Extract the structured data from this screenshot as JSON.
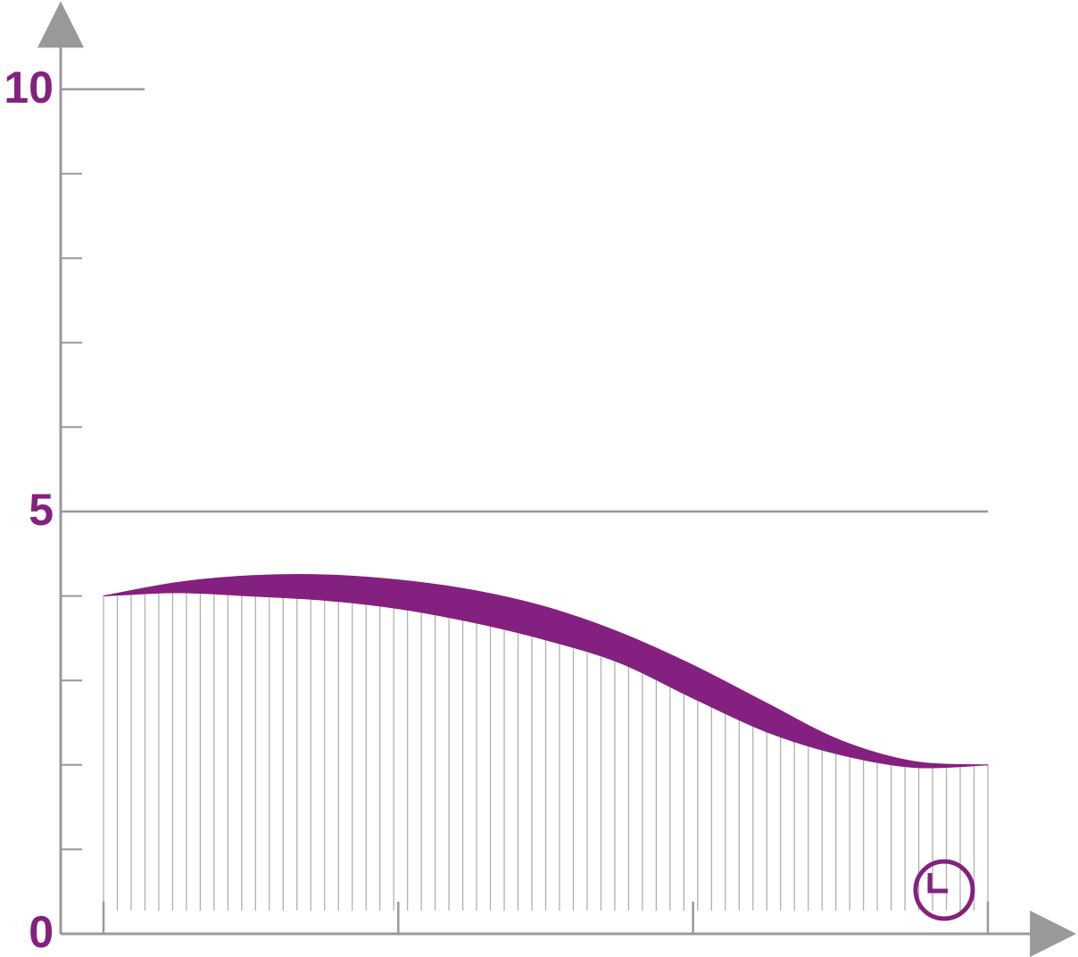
{
  "chart_data": {
    "type": "band",
    "x": [
      0,
      0.25,
      0.5,
      0.75,
      1,
      1.25,
      1.5,
      1.75,
      2,
      2.25,
      2.5,
      2.75,
      3
    ],
    "series": [
      {
        "color": "#84207f",
        "values": [
          4.0,
          4.16,
          4.24,
          4.25,
          4.19,
          4.07,
          3.87,
          3.57,
          3.18,
          2.73,
          2.29,
          2.04,
          2.0
        ]
      },
      {
        "color": "#84207f",
        "values": [
          4.0,
          4.04,
          4.0,
          3.95,
          3.85,
          3.69,
          3.48,
          3.21,
          2.79,
          2.39,
          2.12,
          1.97,
          2.0
        ]
      }
    ],
    "xlim": [
      -0.145,
      3.3
    ],
    "xticks": [
      0,
      1,
      2,
      3
    ],
    "ylim": [
      0,
      11
    ],
    "yticks": [
      0,
      5,
      10
    ],
    "yticks_minor": [
      1,
      2,
      3,
      4,
      6,
      7,
      8,
      9
    ],
    "axis_color": "#999999"
  }
}
